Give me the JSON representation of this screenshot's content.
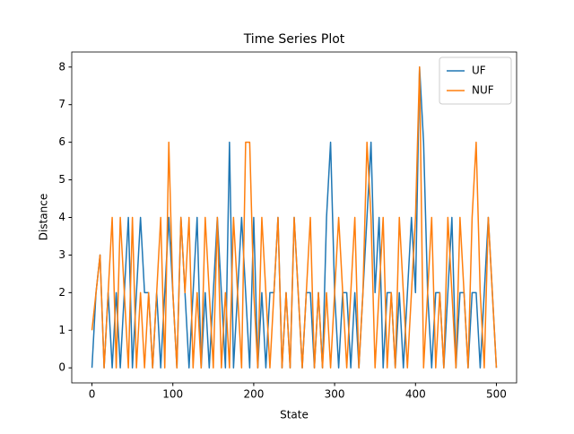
{
  "chart_data": {
    "type": "line",
    "title": "Time Series Plot",
    "x_label": "State",
    "y_label": "Distance",
    "x": [
      0,
      5,
      10,
      15,
      20,
      25,
      30,
      35,
      40,
      45,
      50,
      55,
      60,
      65,
      70,
      75,
      80,
      85,
      90,
      95,
      100,
      105,
      110,
      115,
      120,
      125,
      130,
      135,
      140,
      145,
      150,
      155,
      160,
      165,
      170,
      175,
      180,
      185,
      190,
      195,
      200,
      205,
      210,
      215,
      220,
      225,
      230,
      235,
      240,
      245,
      250,
      255,
      260,
      265,
      270,
      275,
      280,
      285,
      290,
      295,
      300,
      305,
      310,
      315,
      320,
      325,
      330,
      335,
      340,
      345,
      350,
      355,
      360,
      365,
      370,
      375,
      380,
      385,
      390,
      395,
      400,
      405,
      410,
      415,
      420,
      425,
      430,
      435,
      440,
      445,
      450,
      455,
      460,
      465,
      470,
      475,
      480,
      485,
      490,
      495,
      500
    ],
    "series": [
      {
        "name": "UF",
        "color": "#1f77b4",
        "values": [
          0,
          2,
          3,
          0,
          2,
          0,
          2,
          0,
          2,
          4,
          0,
          2,
          4,
          2,
          2,
          0,
          2,
          0,
          2,
          4,
          2,
          0,
          4,
          2,
          0,
          2,
          4,
          0,
          2,
          0,
          2,
          4,
          2,
          0,
          6,
          0,
          2,
          4,
          2,
          0,
          4,
          0,
          2,
          0,
          2,
          2,
          4,
          0,
          2,
          0,
          4,
          2,
          0,
          2,
          2,
          0,
          2,
          0,
          4,
          6,
          2,
          0,
          2,
          2,
          0,
          2,
          0,
          2,
          4,
          6,
          2,
          4,
          0,
          2,
          2,
          0,
          2,
          0,
          2,
          4,
          2,
          8,
          6,
          2,
          0,
          2,
          2,
          0,
          2,
          4,
          0,
          2,
          2,
          0,
          2,
          2,
          0,
          2,
          4,
          2,
          0
        ]
      },
      {
        "name": "NUF",
        "color": "#ff7f0e",
        "values": [
          1,
          2,
          3,
          0,
          2,
          4,
          0,
          4,
          2,
          0,
          4,
          0,
          2,
          0,
          2,
          0,
          2,
          4,
          0,
          6,
          2,
          0,
          4,
          2,
          4,
          0,
          2,
          0,
          4,
          2,
          0,
          4,
          0,
          2,
          0,
          4,
          2,
          0,
          6,
          6,
          2,
          0,
          4,
          2,
          0,
          2,
          4,
          0,
          2,
          0,
          4,
          2,
          0,
          2,
          4,
          0,
          2,
          0,
          2,
          0,
          2,
          4,
          2,
          0,
          2,
          4,
          0,
          2,
          6,
          4,
          0,
          2,
          4,
          0,
          2,
          0,
          4,
          2,
          0,
          2,
          4,
          8,
          0,
          2,
          4,
          0,
          2,
          0,
          4,
          2,
          0,
          4,
          2,
          0,
          4,
          6,
          2,
          0,
          4,
          2,
          0
        ]
      }
    ],
    "xlim": [
      -25,
      525
    ],
    "ylim": [
      -0.4,
      8.4
    ],
    "xticks": [
      0,
      100,
      200,
      300,
      400,
      500
    ],
    "yticks": [
      0,
      1,
      2,
      3,
      4,
      5,
      6,
      7,
      8
    ],
    "legend": "upper right"
  }
}
